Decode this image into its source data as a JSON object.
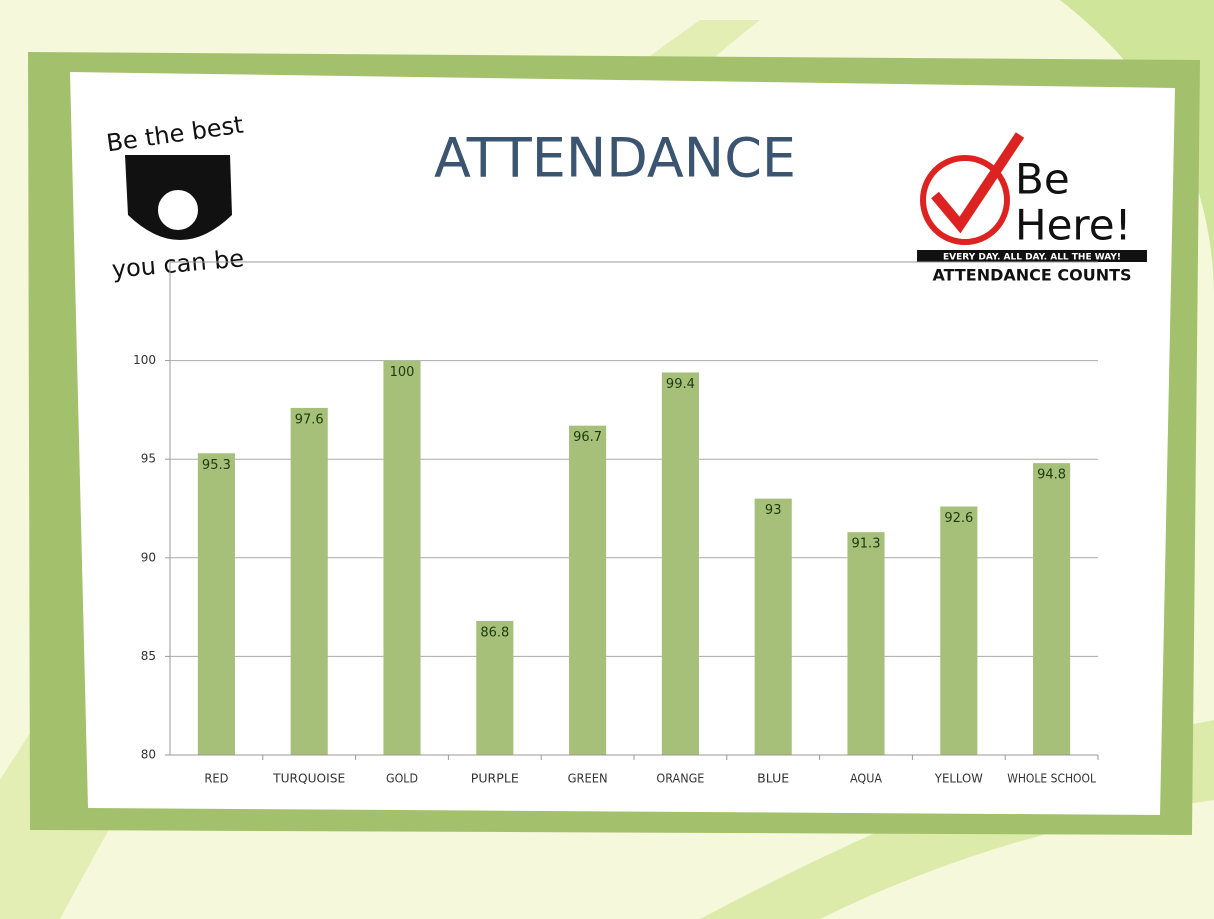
{
  "chart_data": {
    "type": "bar",
    "title": "ATTENDANCE",
    "categories": [
      "RED",
      "TURQUOISE",
      "GOLD",
      "PURPLE",
      "GREEN",
      "ORANGE",
      "BLUE",
      "AQUA",
      "YELLOW",
      "WHOLE SCHOOL"
    ],
    "values": [
      95.3,
      97.6,
      100,
      86.8,
      96.7,
      99.4,
      93,
      91.3,
      92.6,
      94.8
    ],
    "color": "#a6c079",
    "ylim": [
      80,
      105
    ],
    "yticks": [
      80,
      85,
      90,
      95,
      100
    ],
    "grid": true
  },
  "logos": {
    "left_top": "Be the best",
    "left_bottom": "you can be",
    "right_be": "Be",
    "right_here": "Here!",
    "right_slogan": "EVERY DAY. ALL DAY. ALL THE WAY!",
    "right_caption": "ATTENDANCE COUNTS"
  }
}
